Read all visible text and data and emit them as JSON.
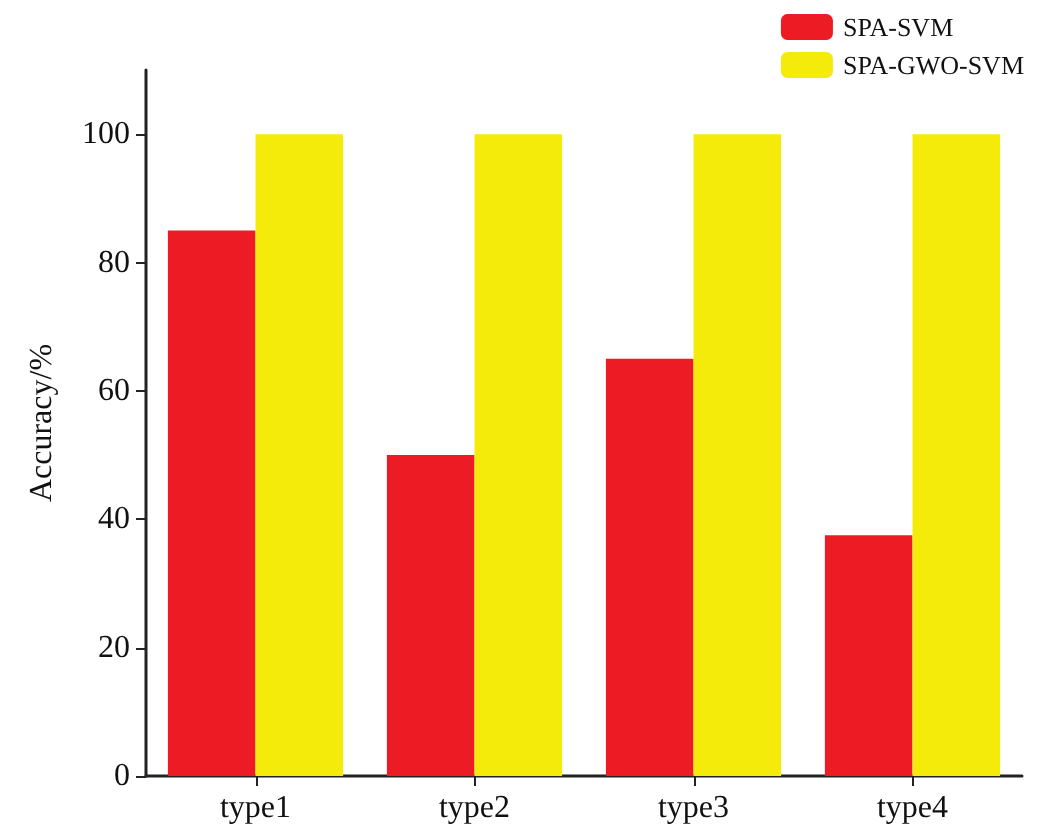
{
  "chart_data": {
    "type": "bar",
    "ylabel": "Accuracy/%",
    "categories": [
      "type1",
      "type2",
      "type3",
      "type4"
    ],
    "series": [
      {
        "name": "SPA-SVM",
        "color": "#ed1c24",
        "values": [
          85,
          50,
          65,
          37.5
        ]
      },
      {
        "name": "SPA-GWO-SVM",
        "color": "#f5eb0a",
        "values": [
          100,
          100,
          100,
          100
        ]
      }
    ],
    "ylim": [
      0,
      110
    ],
    "yticks": [
      0,
      20,
      40,
      60,
      80,
      100
    ],
    "grid": false,
    "legend": "top right"
  }
}
